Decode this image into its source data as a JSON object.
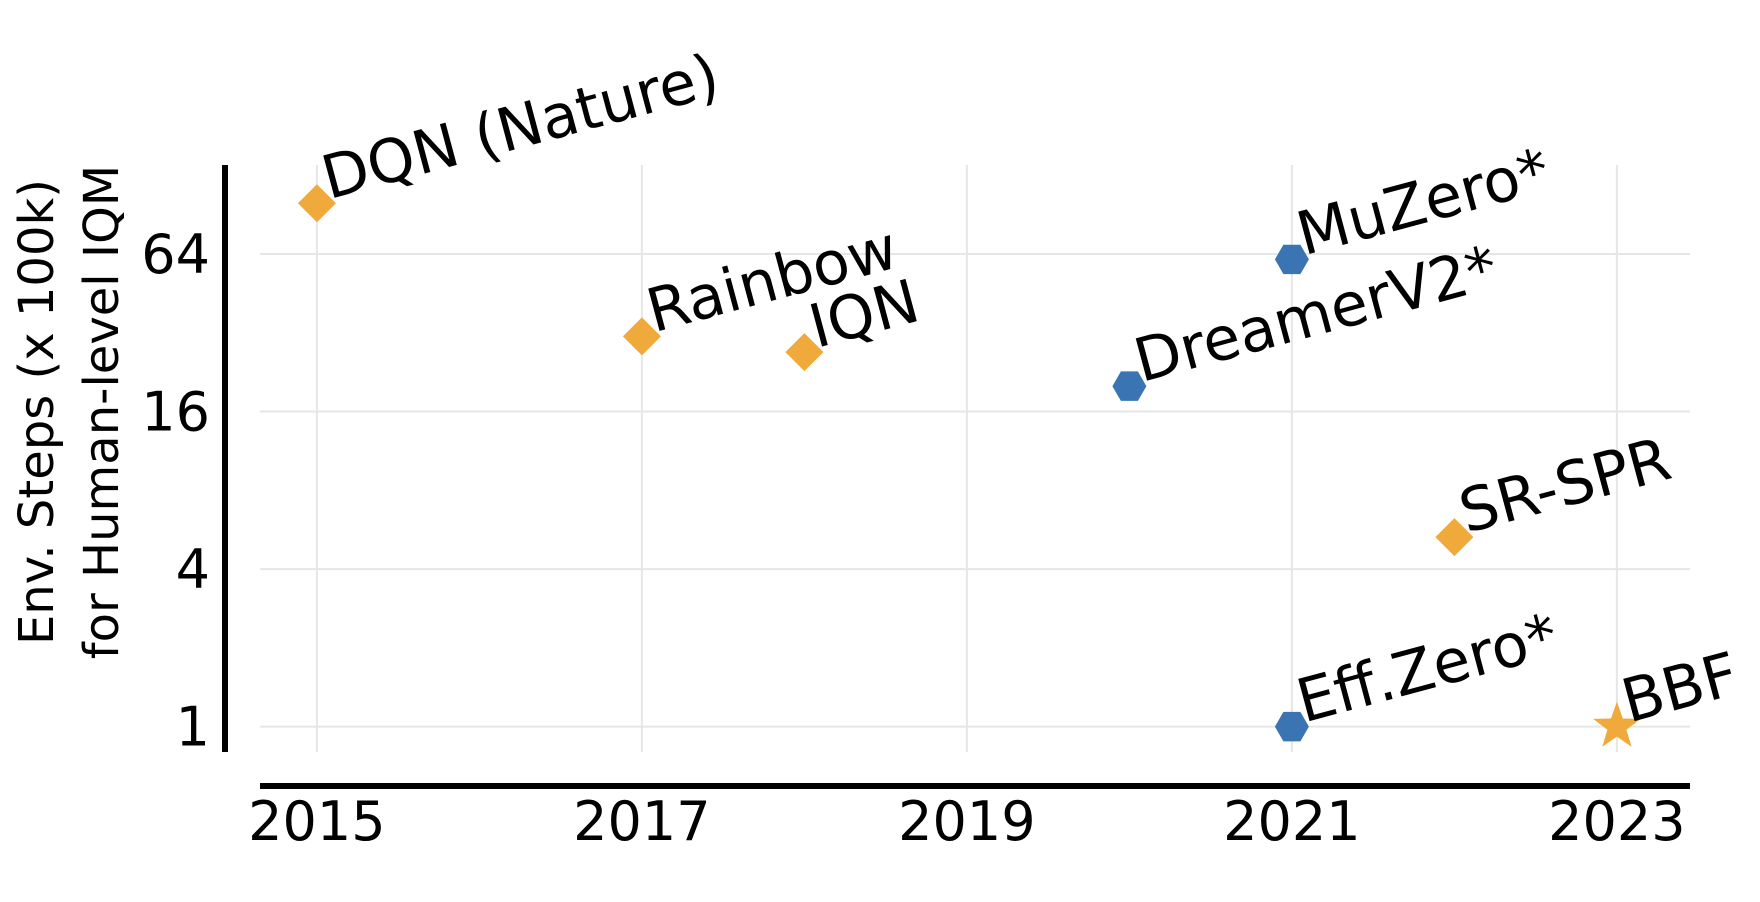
{
  "chart_data": {
    "type": "scatter",
    "title": "",
    "xlabel": "",
    "ylabel": [
      "Env. Steps (x 100k)",
      "for Human-level IQM"
    ],
    "y_scale": "log2",
    "xlim": [
      2014.65,
      2023.45
    ],
    "ylim": [
      0.8,
      140
    ],
    "x_ticks": [
      2015,
      2017,
      2019,
      2021,
      2023
    ],
    "y_ticks": [
      1,
      4,
      16,
      64
    ],
    "grid": true,
    "colors": {
      "orange": "#f0a93b",
      "blue": "#3b74b2"
    },
    "points": [
      {
        "label": "DQN (Nature)",
        "x": 2015,
        "y": 100,
        "marker": "diamond",
        "color": "#f0a93b"
      },
      {
        "label": "Rainbow",
        "x": 2017,
        "y": 31,
        "marker": "diamond",
        "color": "#f0a93b"
      },
      {
        "label": "IQN",
        "x": 2018,
        "y": 27,
        "marker": "diamond",
        "color": "#f0a93b"
      },
      {
        "label": "DreamerV2*",
        "x": 2020,
        "y": 20,
        "marker": "hexagon",
        "color": "#3b74b2"
      },
      {
        "label": "MuZero*",
        "x": 2021,
        "y": 61,
        "marker": "hexagon",
        "color": "#3b74b2"
      },
      {
        "label": "Eff.Zero*",
        "x": 2021,
        "y": 1,
        "marker": "hexagon",
        "color": "#3b74b2"
      },
      {
        "label": "SR-SPR",
        "x": 2022,
        "y": 5.3,
        "marker": "diamond",
        "color": "#f0a93b"
      },
      {
        "label": "BBF",
        "x": 2023,
        "y": 1,
        "marker": "star",
        "color": "#f0a93b"
      }
    ]
  }
}
